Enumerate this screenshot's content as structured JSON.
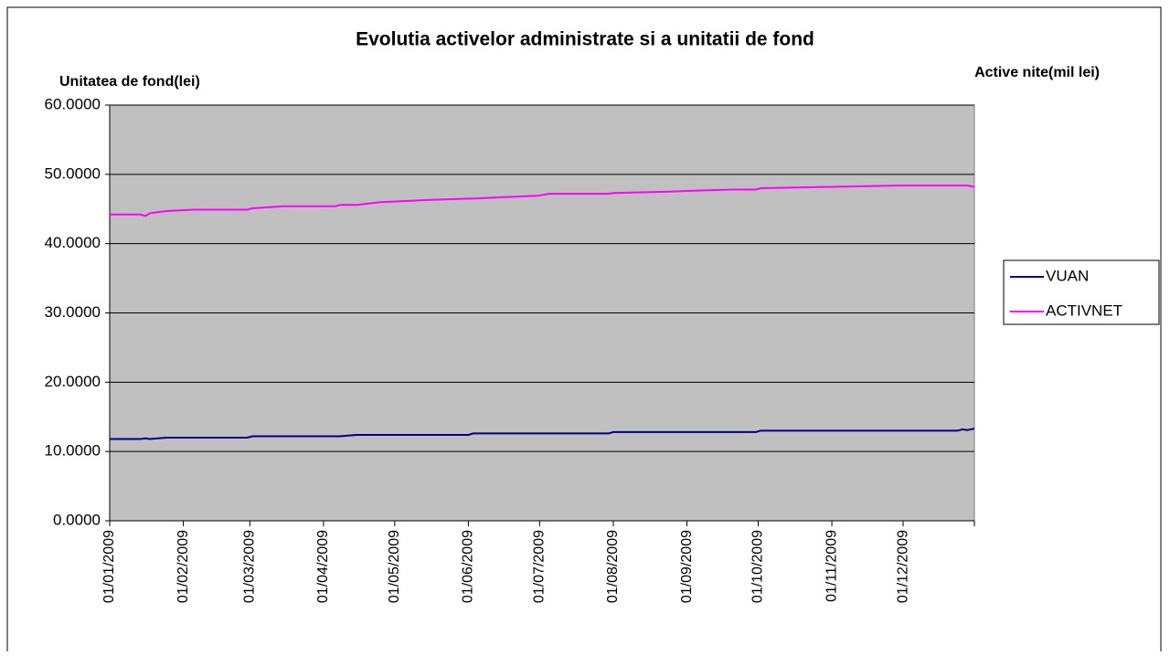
{
  "chart_data": {
    "type": "line",
    "title": "Evolutia activelor administrate si a unitatii de fond",
    "y_label": "Unitatea de fond(lei)",
    "y2_label": "Active nite(mil lei)",
    "x": [
      "01/01/2009",
      "14/01/2009",
      "16/01/2009",
      "18/01/2009",
      "25/01/2009",
      "05/02/2009",
      "28/02/2009",
      "02/03/2009",
      "15/03/2009",
      "06/04/2009",
      "08/04/2009",
      "15/04/2009",
      "25/04/2009",
      "15/05/2009",
      "01/06/2009",
      "03/06/2009",
      "15/06/2009",
      "30/06/2009",
      "05/07/2009",
      "30/07/2009",
      "01/08/2009",
      "25/08/2009",
      "01/09/2009",
      "20/09/2009",
      "30/09/2009",
      "02/10/2009",
      "01/11/2009",
      "01/12/2009",
      "24/12/2009",
      "26/12/2009",
      "28/12/2009",
      "31/12/2009"
    ],
    "series": [
      {
        "name": "VUAN",
        "color": "#000080",
        "values": [
          11.8,
          11.8,
          11.9,
          11.8,
          12.0,
          12.0,
          12.0,
          12.2,
          12.2,
          12.2,
          12.2,
          12.4,
          12.4,
          12.4,
          12.4,
          12.6,
          12.6,
          12.6,
          12.6,
          12.6,
          12.8,
          12.8,
          12.8,
          12.8,
          12.8,
          13.0,
          13.0,
          13.0,
          13.0,
          13.2,
          13.1,
          13.3
        ]
      },
      {
        "name": "ACTIVNET",
        "color": "#ff00ff",
        "values": [
          44.2,
          44.2,
          44.0,
          44.4,
          44.7,
          44.9,
          44.9,
          45.1,
          45.4,
          45.4,
          45.6,
          45.6,
          46.0,
          46.3,
          46.5,
          46.5,
          46.7,
          46.9,
          47.2,
          47.2,
          47.3,
          47.5,
          47.6,
          47.8,
          47.8,
          48.0,
          48.2,
          48.4,
          48.4,
          48.4,
          48.4,
          48.2
        ]
      }
    ],
    "xlim": [
      "01/01/2009",
      "31/12/2009"
    ],
    "xticks": [
      "01/01/2009",
      "01/02/2009",
      "01/03/2009",
      "01/04/2009",
      "01/05/2009",
      "01/06/2009",
      "01/07/2009",
      "01/08/2009",
      "01/09/2009",
      "01/10/2009",
      "01/11/2009",
      "01/12/2009"
    ],
    "ylim": [
      0,
      60
    ],
    "yticks": [
      {
        "value": 0,
        "label": "0.0000"
      },
      {
        "value": 10,
        "label": "10.0000"
      },
      {
        "value": 20,
        "label": "20.0000"
      },
      {
        "value": 30,
        "label": "30.0000"
      },
      {
        "value": 40,
        "label": "40.0000"
      },
      {
        "value": 50,
        "label": "50.0000"
      },
      {
        "value": 60,
        "label": "60.0000"
      }
    ],
    "grid": true,
    "plot_background": "#c0c0c0",
    "legend": "right"
  }
}
